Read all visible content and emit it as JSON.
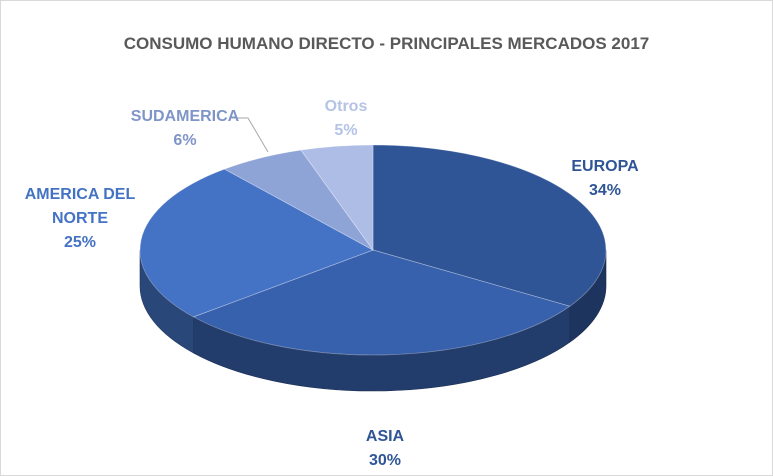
{
  "chart_data": {
    "type": "pie",
    "title": "CONSUMO HUMANO DIRECTO - PRINCIPALES MERCADOS 2017",
    "categories": [
      "EUROPA",
      "ASIA",
      "AMERICA DEL NORTE",
      "SUDAMERICA",
      "Otros"
    ],
    "values": [
      34,
      30,
      25,
      6,
      5
    ],
    "value_labels": [
      "34%",
      "30%",
      "25%",
      "6%",
      "5%"
    ],
    "colors": [
      "#2f5597",
      "#3760ad",
      "#4472c4",
      "#8ea3d6",
      "#adbde6"
    ]
  }
}
